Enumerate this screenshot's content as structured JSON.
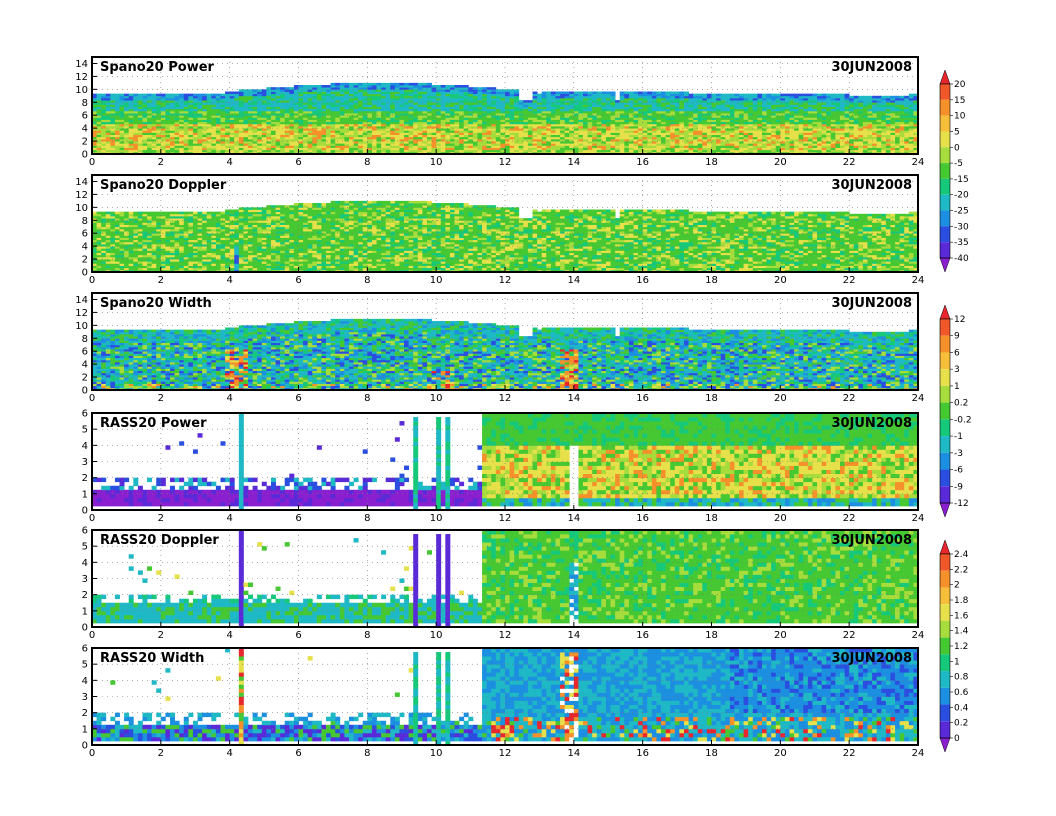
{
  "chart_data": [
    {
      "type": "heatmap",
      "title": "Spano20  Power",
      "date": "30JUN2008",
      "xlim": [
        0,
        24
      ],
      "x_ticks": [
        "0",
        "2",
        "4",
        "6",
        "8",
        "10",
        "12",
        "14",
        "16",
        "18",
        "20",
        "22",
        "24"
      ],
      "ylim": [
        0,
        15
      ],
      "y_ticks": [
        "0",
        "2",
        "4",
        "6",
        "8",
        "10",
        "12",
        "14"
      ],
      "grid": true,
      "field": "spano_power",
      "colorbar_group": 0
    },
    {
      "type": "heatmap",
      "title": "Spano20  Doppler",
      "date": "30JUN2008",
      "xlim": [
        0,
        24
      ],
      "x_ticks": [
        "0",
        "2",
        "4",
        "6",
        "8",
        "10",
        "12",
        "14",
        "16",
        "18",
        "20",
        "22",
        "24"
      ],
      "ylim": [
        0,
        15
      ],
      "y_ticks": [
        "0",
        "2",
        "4",
        "6",
        "8",
        "10",
        "12",
        "14"
      ],
      "grid": true,
      "field": "spano_doppler",
      "colorbar_group": 0
    },
    {
      "type": "heatmap",
      "title": "Spano20  Width",
      "date": "30JUN2008",
      "xlim": [
        0,
        24
      ],
      "x_ticks": [
        "0",
        "2",
        "4",
        "6",
        "8",
        "10",
        "12",
        "14",
        "16",
        "18",
        "20",
        "22",
        "24"
      ],
      "ylim": [
        0,
        15
      ],
      "y_ticks": [
        "0",
        "2",
        "4",
        "6",
        "8",
        "10",
        "12",
        "14"
      ],
      "grid": true,
      "field": "spano_width",
      "colorbar_group": 1
    },
    {
      "type": "heatmap",
      "title": "RASS20  Power",
      "date": "30JUN2008",
      "xlim": [
        0,
        24
      ],
      "x_ticks": [
        "0",
        "2",
        "4",
        "6",
        "8",
        "10",
        "12",
        "14",
        "16",
        "18",
        "20",
        "22",
        "24"
      ],
      "ylim": [
        0,
        6
      ],
      "y_ticks": [
        "0",
        "1",
        "2",
        "3",
        "4",
        "5",
        "6"
      ],
      "grid": true,
      "field": "rass_power",
      "colorbar_group": 1
    },
    {
      "type": "heatmap",
      "title": "RASS20  Doppler",
      "date": "30JUN2008",
      "xlim": [
        0,
        24
      ],
      "x_ticks": [
        "0",
        "2",
        "4",
        "6",
        "8",
        "10",
        "12",
        "14",
        "16",
        "18",
        "20",
        "22",
        "24"
      ],
      "ylim": [
        0,
        6
      ],
      "y_ticks": [
        "0",
        "1",
        "2",
        "3",
        "4",
        "5",
        "6"
      ],
      "grid": true,
      "field": "rass_doppler",
      "colorbar_group": 2
    },
    {
      "type": "heatmap",
      "title": "RASS20  Width",
      "date": "30JUN2008",
      "xlim": [
        0,
        24
      ],
      "x_ticks": [
        "0",
        "2",
        "4",
        "6",
        "8",
        "10",
        "12",
        "14",
        "16",
        "18",
        "20",
        "22",
        "24"
      ],
      "ylim": [
        0,
        6
      ],
      "y_ticks": [
        "0",
        "1",
        "2",
        "3",
        "4",
        "5",
        "6"
      ],
      "grid": true,
      "field": "rass_width",
      "colorbar_group": 2
    }
  ],
  "colorbars": [
    {
      "labels": [
        "20",
        "15",
        "10",
        "5",
        "0",
        "-5",
        "-15",
        "-20",
        "-25",
        "-30",
        "-35",
        "-40"
      ],
      "colors": [
        "#e8262e",
        "#f0582a",
        "#f5902a",
        "#f7be3a",
        "#e6e04a",
        "#a6dc3c",
        "#46c832",
        "#16c97a",
        "#1fb9c6",
        "#1d8fe0",
        "#2a4fe0",
        "#5a2ad8",
        "#8a1fd0"
      ]
    },
    {
      "labels": [
        "12",
        "9",
        "6",
        "3",
        "1",
        "0.2",
        "-0.2",
        "-1",
        "-3",
        "-6",
        "-9",
        "-12"
      ],
      "colors": [
        "#e8262e",
        "#f0582a",
        "#f5902a",
        "#f7be3a",
        "#e6e04a",
        "#a6dc3c",
        "#46c832",
        "#16c97a",
        "#1fb9c6",
        "#1d8fe0",
        "#2a4fe0",
        "#5a2ad8",
        "#8a1fd0"
      ]
    },
    {
      "labels": [
        "2.4",
        "2.2",
        "2",
        "1.8",
        "1.6",
        "1.4",
        "1.2",
        "1",
        "0.8",
        "0.6",
        "0.4",
        "0.2",
        "0"
      ],
      "colors": [
        "#e8262e",
        "#f0582a",
        "#f5902a",
        "#f7be3a",
        "#e6e04a",
        "#a6dc3c",
        "#46c832",
        "#16c97a",
        "#1fb9c6",
        "#1d8fe0",
        "#2a4fe0",
        "#5a2ad8",
        "#8a1fd0"
      ]
    }
  ],
  "palette": {
    "red": "#e8262e",
    "orange": "#f5902a",
    "yellow": "#e6e04a",
    "lightgreen": "#a6dc3c",
    "green": "#46c832",
    "teal": "#16c97a",
    "cyan": "#1fb9c6",
    "blue": "#1d8fe0",
    "darkblue": "#2a4fe0",
    "violet": "#5a2ad8",
    "purple": "#8a1fd0",
    "white": "#ffffff"
  }
}
